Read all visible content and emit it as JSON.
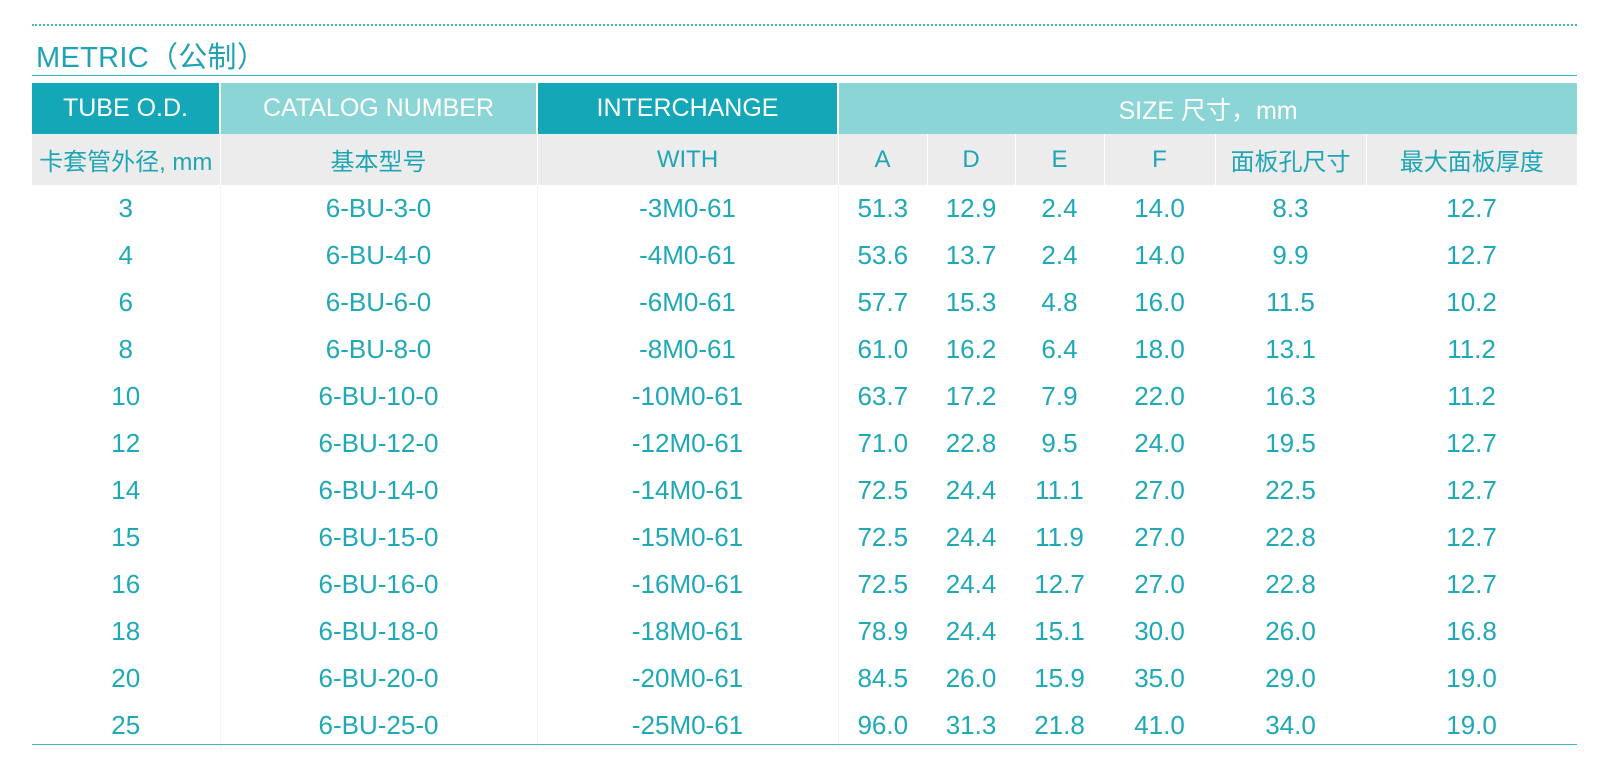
{
  "title": "METRIC（公制）",
  "header": {
    "tube_od": "TUBE O.D.",
    "catalog_number": "CATALOG NUMBER",
    "interchange": "INTERCHANGE",
    "size": "SIZE 尺寸，mm"
  },
  "subheader": {
    "tube_od": "卡套管外径, mm",
    "catalog_number": "基本型号",
    "interchange": "WITH",
    "a": "A",
    "d": "D",
    "e": "E",
    "f": "F",
    "panel_hole": "面板孔尺寸",
    "max_panel": "最大面板厚度"
  },
  "rows": [
    {
      "od": "3",
      "catalog": "6-BU-3-0",
      "interchange": "-3M0-61",
      "a": "51.3",
      "d": "12.9",
      "e": "2.4",
      "f": "14.0",
      "hole": "8.3",
      "thick": "12.7"
    },
    {
      "od": "4",
      "catalog": "6-BU-4-0",
      "interchange": "-4M0-61",
      "a": "53.6",
      "d": "13.7",
      "e": "2.4",
      "f": "14.0",
      "hole": "9.9",
      "thick": "12.7"
    },
    {
      "od": "6",
      "catalog": "6-BU-6-0",
      "interchange": "-6M0-61",
      "a": "57.7",
      "d": "15.3",
      "e": "4.8",
      "f": "16.0",
      "hole": "11.5",
      "thick": "10.2"
    },
    {
      "od": "8",
      "catalog": "6-BU-8-0",
      "interchange": "-8M0-61",
      "a": "61.0",
      "d": "16.2",
      "e": "6.4",
      "f": "18.0",
      "hole": "13.1",
      "thick": "11.2"
    },
    {
      "od": "10",
      "catalog": "6-BU-10-0",
      "interchange": "-10M0-61",
      "a": "63.7",
      "d": "17.2",
      "e": "7.9",
      "f": "22.0",
      "hole": "16.3",
      "thick": "11.2"
    },
    {
      "od": "12",
      "catalog": "6-BU-12-0",
      "interchange": "-12M0-61",
      "a": "71.0",
      "d": "22.8",
      "e": "9.5",
      "f": "24.0",
      "hole": "19.5",
      "thick": "12.7"
    },
    {
      "od": "14",
      "catalog": "6-BU-14-0",
      "interchange": "-14M0-61",
      "a": "72.5",
      "d": "24.4",
      "e": "11.1",
      "f": "27.0",
      "hole": "22.5",
      "thick": "12.7"
    },
    {
      "od": "15",
      "catalog": "6-BU-15-0",
      "interchange": "-15M0-61",
      "a": "72.5",
      "d": "24.4",
      "e": "11.9",
      "f": "27.0",
      "hole": "22.8",
      "thick": "12.7"
    },
    {
      "od": "16",
      "catalog": "6-BU-16-0",
      "interchange": "-16M0-61",
      "a": "72.5",
      "d": "24.4",
      "e": "12.7",
      "f": "27.0",
      "hole": "22.8",
      "thick": "12.7"
    },
    {
      "od": "18",
      "catalog": "6-BU-18-0",
      "interchange": "-18M0-61",
      "a": "78.9",
      "d": "24.4",
      "e": "15.1",
      "f": "30.0",
      "hole": "26.0",
      "thick": "16.8"
    },
    {
      "od": "20",
      "catalog": "6-BU-20-0",
      "interchange": "-20M0-61",
      "a": "84.5",
      "d": "26.0",
      "e": "15.9",
      "f": "35.0",
      "hole": "29.0",
      "thick": "19.0"
    },
    {
      "od": "25",
      "catalog": "6-BU-25-0",
      "interchange": "-25M0-61",
      "a": "96.0",
      "d": "31.3",
      "e": "21.8",
      "f": "41.0",
      "hole": "34.0",
      "thick": "19.0"
    }
  ],
  "colors": {
    "accent_dark": "#13a7b7",
    "accent_light": "#8bd5d6",
    "text": "#1fa8b6",
    "subheader_bg": "#ececec"
  }
}
